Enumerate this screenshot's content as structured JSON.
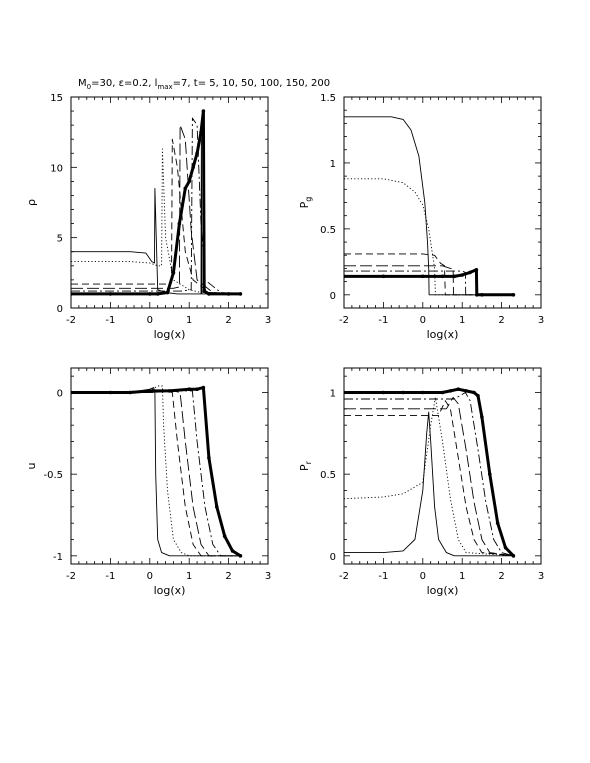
{
  "title": {
    "m_sym": "M",
    "m_sub": "0",
    "m_val": "=30, ",
    "eps": "ε=0.2, ",
    "l_sym": "l",
    "l_sub": "max",
    "l_val": "=7, t= 5, 10, 50, 100, 150, 200"
  },
  "chart_data": [
    {
      "id": "rho",
      "type": "line",
      "xlabel": "log(x)",
      "ylabel": "ρ",
      "xlim": [
        -2,
        3
      ],
      "ylim": [
        0,
        15
      ],
      "xticks": [
        -2,
        -1,
        0,
        1,
        2,
        3
      ],
      "yticks": [
        0,
        5,
        10,
        15
      ],
      "xtick_labels": [
        "-2",
        "-1",
        "0",
        "1",
        "2",
        "3"
      ],
      "ytick_labels": [
        "0",
        "5",
        "10",
        "15"
      ],
      "series": [
        {
          "style": "solid",
          "x": [
            -2,
            -0.5,
            -0.1,
            0.05,
            0.12,
            0.13,
            0.2,
            0.4,
            0.7,
            1.0,
            1.2,
            1.3,
            1.31,
            1.32,
            1.5,
            2.0,
            2.3
          ],
          "y": [
            4.0,
            4.0,
            3.9,
            3.3,
            3.2,
            8.5,
            1.3,
            1.1,
            1.0,
            1.0,
            1.0,
            1.0,
            13.0,
            1.0,
            1.0,
            1.0,
            1.0
          ]
        },
        {
          "style": "dotted",
          "x": [
            -2,
            -0.5,
            0.0,
            0.2,
            0.3,
            0.32,
            0.4,
            0.6,
            1.0,
            1.3,
            2.0,
            2.3
          ],
          "y": [
            3.3,
            3.3,
            3.2,
            3.0,
            3.0,
            11.3,
            5.0,
            2.0,
            1.3,
            1.1,
            1.0,
            1.0
          ]
        },
        {
          "style": "dashed",
          "x": [
            -2,
            0.0,
            0.4,
            0.55,
            0.57,
            0.7,
            0.9,
            1.1,
            1.5,
            2.3
          ],
          "y": [
            1.7,
            1.7,
            1.7,
            1.8,
            12.0,
            10.0,
            4.0,
            2.0,
            1.1,
            1.0
          ]
        },
        {
          "style": "longdash",
          "x": [
            -2,
            0.0,
            0.6,
            0.75,
            0.77,
            0.9,
            1.05,
            1.2,
            1.6,
            2.3
          ],
          "y": [
            1.4,
            1.4,
            1.4,
            1.5,
            13.0,
            12.0,
            5.5,
            2.0,
            1.1,
            1.0
          ]
        },
        {
          "style": "dashdot",
          "x": [
            -2,
            0.0,
            0.8,
            1.05,
            1.08,
            1.2,
            1.3,
            1.4,
            1.8,
            2.3
          ],
          "y": [
            1.2,
            1.2,
            1.2,
            1.3,
            13.5,
            13.0,
            6.0,
            2.0,
            1.1,
            1.0
          ]
        },
        {
          "style": "thick",
          "x": [
            -2,
            -1,
            0,
            0.2,
            0.45,
            0.6,
            0.75,
            0.9,
            1.0,
            1.1,
            1.2,
            1.3,
            1.36,
            1.38,
            1.5,
            2.0,
            2.3
          ],
          "y": [
            1.0,
            1.0,
            1.0,
            1.0,
            1.1,
            2.5,
            6.0,
            8.5,
            9.0,
            10.0,
            11.0,
            12.5,
            14.0,
            1.2,
            1.0,
            1.0,
            1.0
          ]
        }
      ]
    },
    {
      "id": "pg",
      "type": "line",
      "xlabel": "log(x)",
      "ylabel": "P_g",
      "xlim": [
        -2,
        3
      ],
      "ylim": [
        -0.1,
        1.5
      ],
      "xticks": [
        -2,
        -1,
        0,
        1,
        2,
        3
      ],
      "yticks": [
        0,
        0.5,
        1,
        1.5
      ],
      "xtick_labels": [
        "-2",
        "-1",
        "0",
        "1",
        "2",
        "3"
      ],
      "ytick_labels": [
        "0",
        "0.5",
        "1",
        "1.5"
      ],
      "series": [
        {
          "style": "solid",
          "x": [
            -2,
            -0.8,
            -0.5,
            -0.3,
            -0.1,
            0.05,
            0.12,
            0.15,
            0.16,
            0.2,
            2.3
          ],
          "y": [
            1.35,
            1.35,
            1.33,
            1.25,
            1.05,
            0.7,
            0.4,
            0.2,
            0.0,
            0.0,
            0.0
          ]
        },
        {
          "style": "dotted",
          "x": [
            -2,
            -1,
            -0.5,
            -0.2,
            0.0,
            0.15,
            0.3,
            0.32,
            0.4,
            2.3
          ],
          "y": [
            0.88,
            0.88,
            0.85,
            0.78,
            0.68,
            0.5,
            0.2,
            0.0,
            0.0,
            0.0
          ]
        },
        {
          "style": "dashed",
          "x": [
            -2,
            0.0,
            0.3,
            0.45,
            0.55,
            0.57,
            0.7,
            2.3
          ],
          "y": [
            0.31,
            0.31,
            0.3,
            0.24,
            0.22,
            0.0,
            0.0,
            0.0
          ]
        },
        {
          "style": "longdash",
          "x": [
            -2,
            0.0,
            0.5,
            0.7,
            0.77,
            0.78,
            0.9,
            2.3
          ],
          "y": [
            0.22,
            0.22,
            0.22,
            0.2,
            0.2,
            0.0,
            0.0,
            0.0
          ]
        },
        {
          "style": "dashdot",
          "x": [
            -2,
            0.0,
            0.8,
            1.0,
            1.08,
            1.09,
            1.2,
            2.3
          ],
          "y": [
            0.18,
            0.18,
            0.18,
            0.18,
            0.17,
            0.0,
            0.0,
            0.0
          ]
        },
        {
          "style": "thick",
          "x": [
            -2,
            -1,
            0,
            0.5,
            0.8,
            1.0,
            1.2,
            1.36,
            1.37,
            1.5,
            2.3
          ],
          "y": [
            0.14,
            0.14,
            0.14,
            0.14,
            0.14,
            0.15,
            0.17,
            0.19,
            0.0,
            0.0,
            0.0
          ]
        }
      ]
    },
    {
      "id": "u",
      "type": "line",
      "xlabel": "log(x)",
      "ylabel": "u",
      "xlim": [
        -2,
        3
      ],
      "ylim": [
        -1.05,
        0.15
      ],
      "xticks": [
        -2,
        -1,
        0,
        1,
        2,
        3
      ],
      "yticks": [
        -1,
        -0.5,
        0
      ],
      "xtick_labels": [
        "-2",
        "-1",
        "0",
        "1",
        "2",
        "3"
      ],
      "ytick_labels": [
        "-1",
        "-0.5",
        "0"
      ],
      "series": [
        {
          "style": "solid",
          "x": [
            -2,
            -0.5,
            0.0,
            0.1,
            0.13,
            0.15,
            0.2,
            0.3,
            0.5,
            2.3
          ],
          "y": [
            0.0,
            0.0,
            0.02,
            0.03,
            0.0,
            -0.5,
            -0.9,
            -0.98,
            -1.0,
            -1.0
          ]
        },
        {
          "style": "dotted",
          "x": [
            -2,
            0.0,
            0.2,
            0.32,
            0.35,
            0.45,
            0.6,
            0.8,
            1.0,
            2.3
          ],
          "y": [
            0.0,
            0.01,
            0.04,
            0.04,
            -0.2,
            -0.6,
            -0.9,
            -0.98,
            -1.0,
            -1.0
          ]
        },
        {
          "style": "dashed",
          "x": [
            -2,
            0.0,
            0.4,
            0.57,
            0.7,
            0.9,
            1.1,
            1.3,
            2.3
          ],
          "y": [
            0.0,
            0.0,
            0.01,
            0.0,
            -0.3,
            -0.7,
            -0.93,
            -1.0,
            -1.0
          ]
        },
        {
          "style": "longdash",
          "x": [
            -2,
            0.0,
            0.6,
            0.77,
            0.9,
            1.1,
            1.3,
            1.5,
            2.3
          ],
          "y": [
            0.0,
            0.0,
            0.01,
            0.0,
            -0.3,
            -0.7,
            -0.93,
            -1.0,
            -1.0
          ]
        },
        {
          "style": "dashdot",
          "x": [
            -2,
            0.0,
            0.8,
            1.08,
            1.2,
            1.4,
            1.6,
            1.8,
            2.3
          ],
          "y": [
            0.0,
            0.0,
            0.01,
            0.01,
            -0.3,
            -0.7,
            -0.93,
            -1.0,
            -1.0
          ]
        },
        {
          "style": "thick",
          "x": [
            -2,
            -1,
            -0.5,
            0,
            0.5,
            1.0,
            1.2,
            1.36,
            1.5,
            1.7,
            1.9,
            2.1,
            2.3
          ],
          "y": [
            0.0,
            0.0,
            0.0,
            0.01,
            0.01,
            0.02,
            0.02,
            0.03,
            -0.4,
            -0.7,
            -0.88,
            -0.97,
            -1.0
          ]
        }
      ]
    },
    {
      "id": "pr",
      "type": "line",
      "xlabel": "log(x)",
      "ylabel": "P_r",
      "xlim": [
        -2,
        3
      ],
      "ylim": [
        -0.05,
        1.15
      ],
      "xticks": [
        -2,
        -1,
        0,
        1,
        2,
        3
      ],
      "yticks": [
        0,
        0.5,
        1
      ],
      "xtick_labels": [
        "-2",
        "-1",
        "0",
        "1",
        "2",
        "3"
      ],
      "ytick_labels": [
        "0",
        "0.5",
        "1"
      ],
      "series": [
        {
          "style": "solid",
          "x": [
            -2,
            -1,
            -0.5,
            -0.2,
            0.0,
            0.1,
            0.15,
            0.2,
            0.3,
            0.4,
            0.6,
            0.8,
            2.3
          ],
          "y": [
            0.02,
            0.02,
            0.03,
            0.1,
            0.4,
            0.75,
            0.88,
            0.7,
            0.3,
            0.1,
            0.02,
            0.0,
            0.0
          ]
        },
        {
          "style": "dotted",
          "x": [
            -2,
            -1,
            -0.5,
            0.0,
            0.2,
            0.32,
            0.5,
            0.7,
            0.9,
            1.1,
            2.3
          ],
          "y": [
            0.35,
            0.36,
            0.38,
            0.45,
            0.8,
            0.97,
            0.7,
            0.35,
            0.1,
            0.02,
            0.0
          ]
        },
        {
          "style": "dashed",
          "x": [
            -2,
            0.0,
            0.4,
            0.57,
            0.7,
            0.9,
            1.1,
            1.3,
            1.5,
            2.3
          ],
          "y": [
            0.86,
            0.86,
            0.86,
            0.95,
            0.9,
            0.6,
            0.3,
            0.1,
            0.02,
            0.0
          ]
        },
        {
          "style": "longdash",
          "x": [
            -2,
            0.0,
            0.6,
            0.77,
            0.9,
            1.1,
            1.3,
            1.5,
            1.7,
            2.3
          ],
          "y": [
            0.9,
            0.9,
            0.9,
            0.97,
            0.93,
            0.65,
            0.33,
            0.1,
            0.02,
            0.0
          ]
        },
        {
          "style": "dashdot",
          "x": [
            -2,
            0.0,
            0.8,
            1.08,
            1.2,
            1.4,
            1.6,
            1.8,
            2.0,
            2.3
          ],
          "y": [
            0.96,
            0.96,
            0.96,
            1.0,
            0.95,
            0.65,
            0.33,
            0.1,
            0.02,
            0.0
          ]
        },
        {
          "style": "thick",
          "x": [
            -2,
            -1,
            -0.5,
            0,
            0.5,
            0.7,
            0.9,
            1.1,
            1.3,
            1.4,
            1.5,
            1.7,
            1.9,
            2.1,
            2.3
          ],
          "y": [
            1.0,
            1.0,
            1.0,
            1.0,
            1.0,
            1.01,
            1.02,
            1.01,
            1.0,
            0.98,
            0.85,
            0.5,
            0.2,
            0.05,
            0.0
          ]
        }
      ]
    }
  ]
}
